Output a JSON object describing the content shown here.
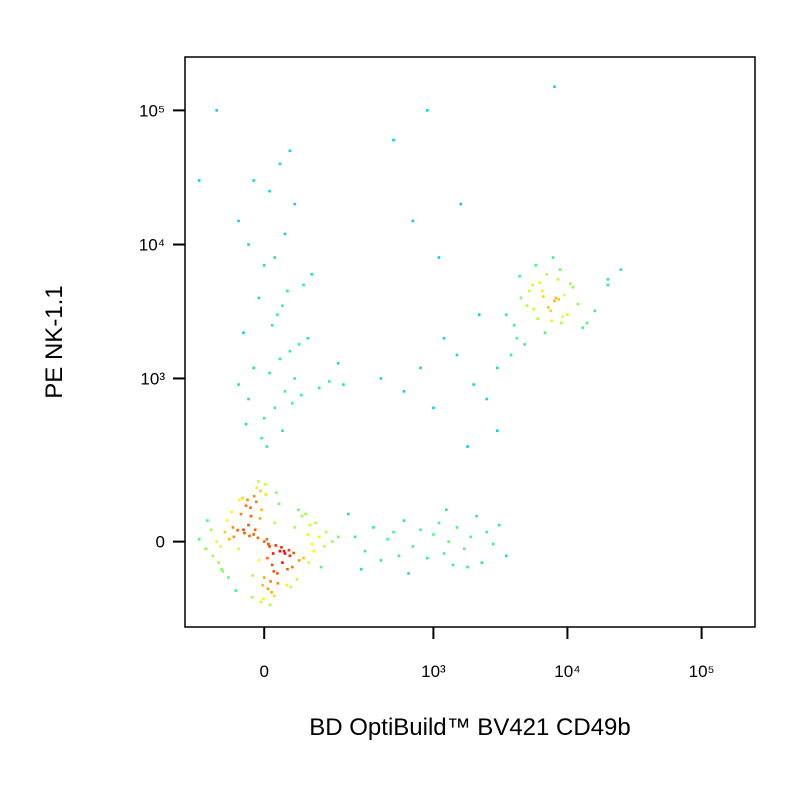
{
  "chart_data": {
    "type": "scatter",
    "x_label": "BD OptiBuild™ BV421 CD49b",
    "y_label": "PE NK-1.1",
    "x_scale": "biexponential",
    "y_scale": "biexponential",
    "xlim": [
      -200,
      250000
    ],
    "ylim": [
      -250,
      250000
    ],
    "xticks": [
      0,
      {
        "value": 1000,
        "label": "10³"
      },
      {
        "value": 10000,
        "label": "10⁴"
      },
      {
        "value": 100000,
        "label": "10⁵"
      }
    ],
    "yticks": [
      0,
      {
        "value": 1000,
        "label": "10³"
      },
      {
        "value": 10000,
        "label": "10⁴"
      },
      {
        "value": 100000,
        "label": "10⁵"
      }
    ],
    "density_colors": [
      "#0000ff",
      "#00c8ff",
      "#40ff80",
      "#ffff00",
      "#ff0000"
    ],
    "x": [
      0,
      10,
      -20,
      30,
      -40,
      50,
      -60,
      20,
      -10,
      5,
      -30,
      40,
      -50,
      60,
      -70,
      15,
      -25,
      35,
      -45,
      55,
      -80,
      80,
      -90,
      90,
      -100,
      100,
      -5,
      25,
      -35,
      45,
      0,
      -15,
      12,
      -8,
      18,
      -22,
      28,
      -32,
      38,
      -42,
      70,
      -75,
      65,
      -65,
      110,
      -110,
      120,
      -130,
      140,
      -150,
      8,
      -12,
      22,
      -28,
      33,
      -38,
      48,
      -52,
      58,
      -62,
      3,
      -3,
      7,
      -7,
      14,
      -14,
      19,
      -19,
      26,
      -26,
      85,
      -85,
      95,
      -95,
      105,
      -115,
      125,
      -125,
      135,
      160,
      -2,
      2,
      -6,
      6,
      -11,
      11,
      -17,
      17,
      -23,
      23,
      44,
      -48,
      52,
      -56,
      68,
      -72,
      76,
      -88,
      92,
      180,
      250,
      300,
      350,
      400,
      450,
      500,
      550,
      600,
      700,
      800,
      900,
      1000,
      1100,
      1200,
      1300,
      1400,
      1500,
      1700,
      1900,
      2100,
      2300,
      2500,
      2800,
      3100,
      3500,
      220,
      280,
      650,
      1250,
      1800,
      3500,
      4000,
      4500,
      5000,
      5500,
      6000,
      6500,
      7000,
      7500,
      8000,
      8500,
      9000,
      9500,
      10000,
      11000,
      12000,
      13000,
      4200,
      4800,
      5200,
      5800,
      6200,
      6800,
      7200,
      7800,
      8200,
      8800,
      9200,
      3800,
      4400,
      5600,
      6600,
      7600,
      8600,
      10500,
      14000,
      3000,
      16000,
      20000,
      25000,
      0,
      20,
      -30,
      40,
      -50,
      60,
      10,
      -20,
      30,
      50,
      70,
      90,
      -40,
      15,
      25,
      35,
      -10,
      45,
      80,
      100,
      0,
      20,
      -30,
      40,
      -50,
      60,
      10,
      -20,
      30,
      50,
      5,
      -5,
      35,
      -35,
      55,
      75,
      120,
      150,
      180,
      200,
      600,
      800,
      1000,
      1500,
      2000,
      2500,
      3000,
      1200,
      1800,
      900,
      500,
      700,
      1100,
      1600,
      2200,
      8000,
      400,
      -100,
      -150,
      20000
    ],
    "y": [
      0,
      -10,
      15,
      -20,
      25,
      -30,
      10,
      40,
      -40,
      5,
      35,
      -25,
      -15,
      30,
      5,
      -50,
      55,
      -45,
      60,
      -55,
      20,
      -35,
      -10,
      15,
      0,
      -5,
      70,
      -70,
      80,
      -60,
      -80,
      90,
      -90,
      50,
      -65,
      -75,
      85,
      95,
      -20,
      100,
      -40,
      45,
      -85,
      65,
      40,
      -30,
      10,
      -15,
      20,
      5,
      -5,
      8,
      -8,
      12,
      -12,
      18,
      -18,
      24,
      -24,
      30,
      110,
      -100,
      -110,
      120,
      -120,
      130,
      -130,
      105,
      -95,
      75,
      60,
      -65,
      35,
      -45,
      -20,
      25,
      -55,
      45,
      -10,
      0,
      -140,
      140,
      -150,
      -35,
      150,
      -160,
      25,
      -25,
      -135,
      115,
      -100,
      95,
      -105,
      -115,
      70,
      -80,
      55,
      -60,
      -45,
      10,
      10,
      -20,
      30,
      -40,
      5,
      20,
      -30,
      45,
      -10,
      25,
      -35,
      15,
      40,
      -25,
      0,
      -50,
      30,
      -15,
      10,
      55,
      -45,
      20,
      -5,
      35,
      -30,
      60,
      -60,
      -70,
      70,
      -55,
      3000,
      2500,
      4000,
      3500,
      5000,
      2800,
      4500,
      6000,
      3200,
      3800,
      5500,
      2600,
      4200,
      3000,
      4800,
      3600,
      2400,
      2000,
      1800,
      4500,
      7000,
      5200,
      2200,
      3400,
      8000,
      4000,
      6500,
      2900,
      1500,
      5800,
      3300,
      4100,
      2700,
      3900,
      5100,
      2600,
      1200,
      3200,
      5500,
      6500,
      500,
      600,
      700,
      800,
      900,
      1000,
      1100,
      1200,
      1400,
      1600,
      1800,
      2000,
      2200,
      2500,
      3000,
      3500,
      4000,
      4500,
      5000,
      6000,
      7000,
      8000,
      10000,
      12000,
      15000,
      20000,
      25000,
      30000,
      40000,
      50000,
      300,
      350,
      400,
      450,
      650,
      750,
      850,
      950,
      1300,
      900,
      800,
      1200,
      600,
      1500,
      900,
      700,
      400,
      2000,
      300,
      100000,
      60000,
      15000,
      8000,
      20000,
      3000,
      150000,
      1000,
      100000,
      30000,
      5000
    ]
  }
}
